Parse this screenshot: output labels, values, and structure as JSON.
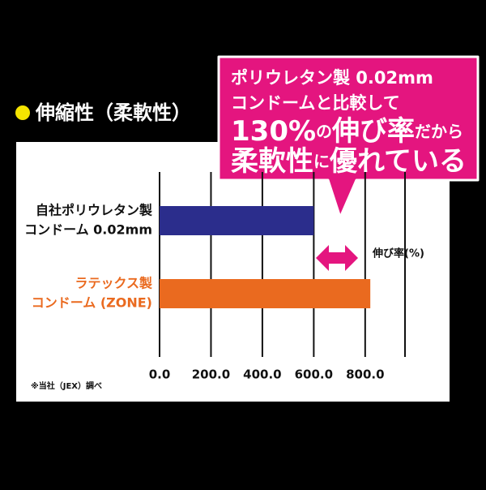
{
  "title": "伸縮性（柔軟性）",
  "chart_data": {
    "type": "hbar",
    "categories": [
      [
        "自社ポリウレタン製",
        "コンドーム 0.02mm"
      ],
      [
        "ラテックス製",
        "コンドーム (ZONE)"
      ]
    ],
    "values": [
      600,
      820
    ],
    "colors": [
      "#2b2d8c",
      "#ea6a1f"
    ],
    "xlim": [
      0,
      955
    ],
    "xticks": [
      {
        "value": 0,
        "label": "0.0"
      },
      {
        "value": 200,
        "label": "200.0"
      },
      {
        "value": 400,
        "label": "400.0"
      },
      {
        "value": 600,
        "label": "600.0"
      },
      {
        "value": 800,
        "label": "800.0"
      }
    ],
    "grid": true,
    "annotation": "伸び率(%)",
    "note": "※当社（JEX）調べ",
    "callout": [
      [
        "ポリウレタン製 0.02mm"
      ],
      [
        "コンドームと比較して"
      ],
      [
        "130%",
        "の",
        "伸び率",
        "だから"
      ],
      [
        "柔軟性",
        "に",
        "優れている"
      ]
    ]
  }
}
